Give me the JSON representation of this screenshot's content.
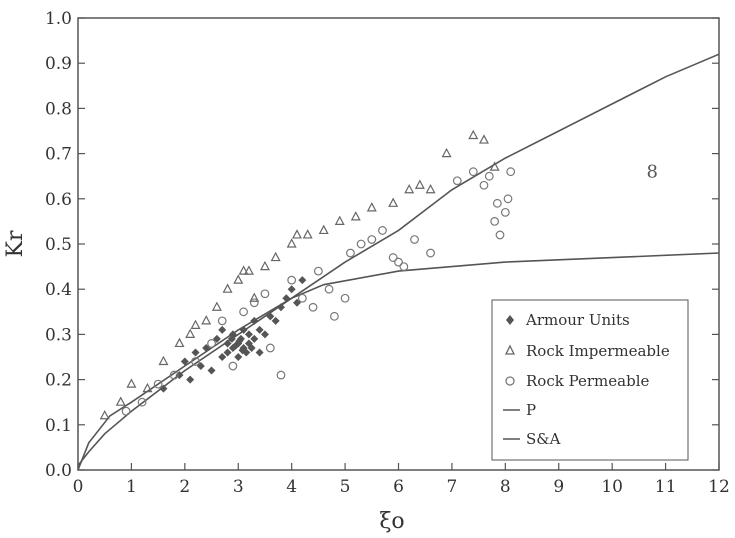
{
  "chart_data": {
    "type": "scatter",
    "xlabel": "ξo",
    "ylabel": "Kr",
    "xlim": [
      0,
      12
    ],
    "ylim": [
      0,
      1.0
    ],
    "x_ticks": [
      "0",
      "1",
      "2",
      "3",
      "4",
      "5",
      "6",
      "7",
      "8",
      "9",
      "10",
      "11",
      "12"
    ],
    "y_ticks": [
      "0.0",
      "0.1",
      "0.2",
      "0.3",
      "0.4",
      "0.5",
      "0.6",
      "0.7",
      "0.8",
      "0.9",
      "1.0"
    ],
    "grid": false,
    "legend_position": "bottom-right",
    "annotations": [
      {
        "text": "8",
        "x": 10.75,
        "y": 0.66
      }
    ],
    "series": [
      {
        "name": "Armour Units",
        "marker": "diamond",
        "color": "#555555",
        "points": [
          [
            1.6,
            0.18
          ],
          [
            1.9,
            0.21
          ],
          [
            2.0,
            0.24
          ],
          [
            2.1,
            0.2
          ],
          [
            2.2,
            0.26
          ],
          [
            2.3,
            0.23
          ],
          [
            2.4,
            0.27
          ],
          [
            2.5,
            0.22
          ],
          [
            2.6,
            0.29
          ],
          [
            2.7,
            0.25
          ],
          [
            2.7,
            0.31
          ],
          [
            2.8,
            0.28
          ],
          [
            2.8,
            0.26
          ],
          [
            2.9,
            0.27
          ],
          [
            2.9,
            0.3
          ],
          [
            3.0,
            0.28
          ],
          [
            3.0,
            0.25
          ],
          [
            3.05,
            0.29
          ],
          [
            3.1,
            0.27
          ],
          [
            3.1,
            0.31
          ],
          [
            3.15,
            0.26
          ],
          [
            3.2,
            0.28
          ],
          [
            3.2,
            0.3
          ],
          [
            3.25,
            0.27
          ],
          [
            3.3,
            0.29
          ],
          [
            3.3,
            0.33
          ],
          [
            3.4,
            0.26
          ],
          [
            3.4,
            0.31
          ],
          [
            3.5,
            0.3
          ],
          [
            3.6,
            0.34
          ],
          [
            3.7,
            0.33
          ],
          [
            3.8,
            0.36
          ],
          [
            3.9,
            0.38
          ],
          [
            4.0,
            0.4
          ],
          [
            4.1,
            0.37
          ],
          [
            4.2,
            0.42
          ],
          [
            2.95,
            0.275
          ],
          [
            3.02,
            0.285
          ],
          [
            3.08,
            0.265
          ],
          [
            2.88,
            0.29
          ]
        ]
      },
      {
        "name": "Rock Impermeable",
        "marker": "triangle",
        "color": "#666666",
        "points": [
          [
            0.5,
            0.12
          ],
          [
            0.8,
            0.15
          ],
          [
            1.0,
            0.19
          ],
          [
            1.3,
            0.18
          ],
          [
            1.6,
            0.24
          ],
          [
            1.9,
            0.28
          ],
          [
            2.1,
            0.3
          ],
          [
            2.4,
            0.33
          ],
          [
            2.6,
            0.36
          ],
          [
            2.8,
            0.4
          ],
          [
            3.0,
            0.42
          ],
          [
            3.1,
            0.44
          ],
          [
            3.2,
            0.44
          ],
          [
            3.5,
            0.45
          ],
          [
            3.7,
            0.47
          ],
          [
            4.0,
            0.5
          ],
          [
            4.1,
            0.52
          ],
          [
            4.3,
            0.52
          ],
          [
            4.6,
            0.53
          ],
          [
            4.9,
            0.55
          ],
          [
            5.2,
            0.56
          ],
          [
            5.5,
            0.58
          ],
          [
            5.9,
            0.59
          ],
          [
            6.2,
            0.62
          ],
          [
            6.4,
            0.63
          ],
          [
            6.6,
            0.62
          ],
          [
            6.9,
            0.7
          ],
          [
            7.4,
            0.74
          ],
          [
            7.6,
            0.73
          ],
          [
            7.8,
            0.67
          ],
          [
            3.3,
            0.38
          ],
          [
            2.2,
            0.32
          ]
        ]
      },
      {
        "name": "Rock Permeable",
        "marker": "circle",
        "color": "#777777",
        "points": [
          [
            0.9,
            0.13
          ],
          [
            1.2,
            0.15
          ],
          [
            1.5,
            0.19
          ],
          [
            1.8,
            0.21
          ],
          [
            2.2,
            0.24
          ],
          [
            2.5,
            0.28
          ],
          [
            2.7,
            0.33
          ],
          [
            2.9,
            0.23
          ],
          [
            3.1,
            0.35
          ],
          [
            3.3,
            0.37
          ],
          [
            3.5,
            0.39
          ],
          [
            3.6,
            0.27
          ],
          [
            3.8,
            0.21
          ],
          [
            4.0,
            0.42
          ],
          [
            4.2,
            0.38
          ],
          [
            4.4,
            0.36
          ],
          [
            4.5,
            0.44
          ],
          [
            4.7,
            0.4
          ],
          [
            4.8,
            0.34
          ],
          [
            5.0,
            0.38
          ],
          [
            5.1,
            0.48
          ],
          [
            5.3,
            0.5
          ],
          [
            5.5,
            0.51
          ],
          [
            5.7,
            0.53
          ],
          [
            5.9,
            0.47
          ],
          [
            6.0,
            0.46
          ],
          [
            6.1,
            0.45
          ],
          [
            6.3,
            0.51
          ],
          [
            6.6,
            0.48
          ],
          [
            7.1,
            0.64
          ],
          [
            7.4,
            0.66
          ],
          [
            7.6,
            0.63
          ],
          [
            7.7,
            0.65
          ],
          [
            7.8,
            0.55
          ],
          [
            7.85,
            0.59
          ],
          [
            7.9,
            0.52
          ],
          [
            8.0,
            0.57
          ],
          [
            8.05,
            0.6
          ],
          [
            8.1,
            0.66
          ]
        ]
      },
      {
        "name": "P",
        "type": "line",
        "color": "#555555",
        "points": [
          [
            0,
            0
          ],
          [
            0.2,
            0.06
          ],
          [
            0.6,
            0.12
          ],
          [
            1.0,
            0.15
          ],
          [
            2,
            0.23
          ],
          [
            3,
            0.31
          ],
          [
            4,
            0.38
          ],
          [
            4.6,
            0.41
          ],
          [
            6,
            0.44
          ],
          [
            8,
            0.46
          ],
          [
            10,
            0.47
          ],
          [
            12,
            0.48
          ]
        ]
      },
      {
        "name": "S&A",
        "type": "line",
        "color": "#555555",
        "points": [
          [
            0,
            0.01
          ],
          [
            0.2,
            0.04
          ],
          [
            0.5,
            0.08
          ],
          [
            0.8,
            0.11
          ],
          [
            1,
            0.13
          ],
          [
            2,
            0.22
          ],
          [
            3,
            0.3
          ],
          [
            4,
            0.38
          ],
          [
            5,
            0.46
          ],
          [
            6,
            0.53
          ],
          [
            7,
            0.62
          ],
          [
            8,
            0.69
          ],
          [
            9,
            0.75
          ],
          [
            10,
            0.81
          ],
          [
            11,
            0.87
          ],
          [
            12,
            0.92
          ]
        ]
      }
    ]
  }
}
